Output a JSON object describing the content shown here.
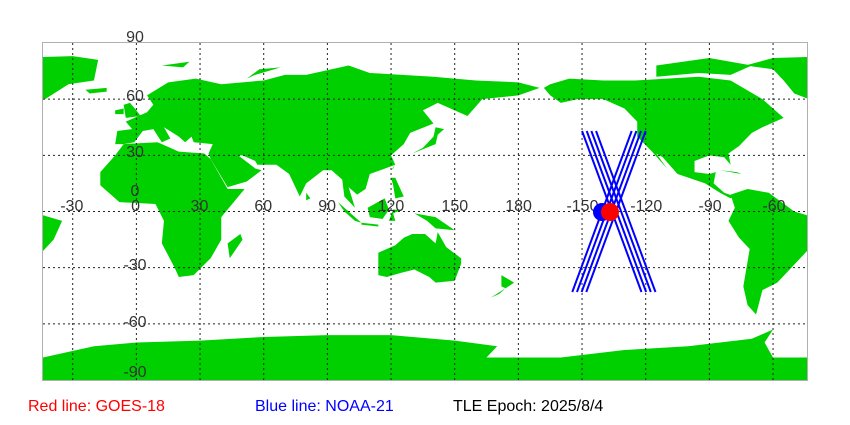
{
  "map": {
    "land_color": "#00d000",
    "track_color_blue": "#0000ff",
    "track_color_red": "#ff0000",
    "lat_labels": [
      "90",
      "60",
      "30",
      "0",
      "-30",
      "-60",
      "-90"
    ],
    "lon_labels": [
      "-30",
      "0",
      "30",
      "60",
      "90",
      "120",
      "150",
      "180",
      "-150",
      "-120",
      "-90",
      "-60"
    ],
    "lat_values": [
      90,
      60,
      30,
      0,
      -30,
      -60,
      -90
    ],
    "lon_values": [
      -30,
      0,
      30,
      60,
      90,
      120,
      150,
      180,
      210,
      240,
      270,
      300
    ],
    "satellites": [
      {
        "name": "GOES-18",
        "color": "#ff0000",
        "lon": -137,
        "lat": 0
      },
      {
        "name": "NOAA-21",
        "color": "#0000ff",
        "lon": -141,
        "lat": 0
      }
    ]
  },
  "legend": {
    "red": "Red line: GOES-18",
    "blue": "Blue line: NOAA-21",
    "epoch": "TLE Epoch: 2025/8/4"
  }
}
